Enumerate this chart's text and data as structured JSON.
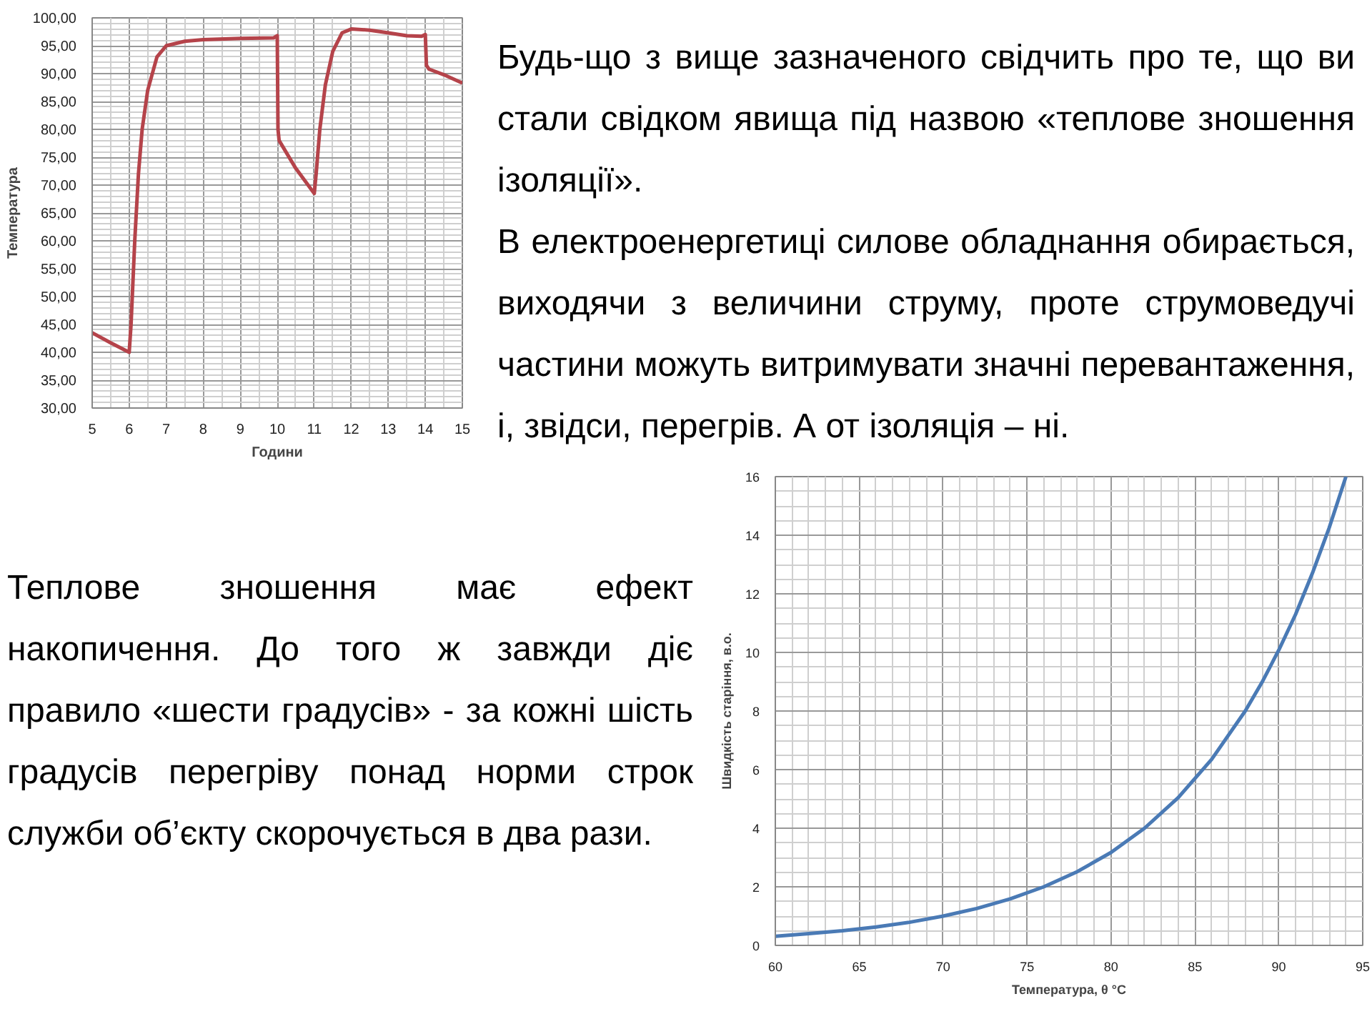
{
  "chart_data": [
    {
      "type": "line",
      "xlabel": "Години",
      "ylabel": "Температура",
      "grid": true,
      "marker": "none",
      "line_style": "solid",
      "xlim": [
        5,
        15
      ],
      "ylim": [
        30,
        100
      ],
      "xticks": [
        5,
        6,
        7,
        8,
        9,
        10,
        11,
        12,
        13,
        14,
        15
      ],
      "yticks": [
        {
          "value": 30,
          "label": "30,00"
        },
        {
          "value": 35,
          "label": "35,00"
        },
        {
          "value": 40,
          "label": "40,00"
        },
        {
          "value": 45,
          "label": "45,00"
        },
        {
          "value": 50,
          "label": "50,00"
        },
        {
          "value": 55,
          "label": "55,00"
        },
        {
          "value": 60,
          "label": "60,00"
        },
        {
          "value": 65,
          "label": "65,00"
        },
        {
          "value": 70,
          "label": "70,00"
        },
        {
          "value": 75,
          "label": "75,00"
        },
        {
          "value": 80,
          "label": "80,00"
        },
        {
          "value": 85,
          "label": "85,00"
        },
        {
          "value": 90,
          "label": "90,00"
        },
        {
          "value": 95,
          "label": "95,00"
        },
        {
          "value": 100,
          "label": "100,00"
        }
      ],
      "x": [
        5,
        5.5,
        6,
        6.05,
        6.15,
        6.25,
        6.35,
        6.5,
        6.75,
        7,
        7.5,
        8,
        9,
        9.9,
        10,
        10.02,
        10.05,
        10.5,
        11,
        11.05,
        11.15,
        11.3,
        11.5,
        11.75,
        12,
        12.5,
        13,
        13.5,
        13.9,
        14,
        14.03,
        14.1,
        14.5,
        15
      ],
      "series": [
        {
          "color": "#b5434a",
          "values": [
            43.5,
            41.7,
            40,
            45,
            60,
            72,
            80,
            87,
            93,
            95,
            95.8,
            96.1,
            96.3,
            96.4,
            96.8,
            80,
            78,
            73,
            68.5,
            72,
            80,
            88,
            94,
            97.3,
            98,
            97.8,
            97.3,
            96.8,
            96.7,
            97,
            91.5,
            90.8,
            89.8,
            88.3
          ]
        }
      ]
    },
    {
      "type": "other",
      "annotations": [
        "Будь-що з вище зазначеного свідчить про те, що ви стали свідком явища під назвою «теплове зношення ізоляції».",
        "В електроенергетиці  силове обладнання обирається, виходячи з величини струму, проте струмоведучі частини можуть витримувати значні перевантаження, і, звідси, перегрів.  А от ізоляція – ні."
      ]
    },
    {
      "type": "other",
      "annotations": [
        "Теплове зношення має ефект накопичення. До того ж завжди діє правило «шести градусів» - за кожні шість градусів перегріву понад норми строк служби об’єкту скорочується в два рази."
      ]
    },
    {
      "type": "line",
      "xlabel": "Температура, θ °C",
      "ylabel": "Швидкість старіння, в.о.",
      "grid": true,
      "marker": "none",
      "line_style": "solid",
      "xlim": [
        60,
        95
      ],
      "ylim": [
        0,
        16
      ],
      "xticks": [
        60,
        65,
        70,
        75,
        80,
        85,
        90,
        95
      ],
      "yticks": [
        0,
        2,
        4,
        6,
        8,
        10,
        12,
        14,
        16
      ],
      "x": [
        60,
        62,
        64,
        66,
        68,
        70,
        72,
        74,
        76,
        78,
        80,
        82,
        84,
        86,
        88,
        89,
        90,
        91,
        92,
        93,
        94
      ],
      "series": [
        {
          "color": "#4a7ab5",
          "values": [
            0.31,
            0.4,
            0.5,
            0.63,
            0.79,
            1.0,
            1.26,
            1.59,
            2.0,
            2.52,
            3.17,
            4.0,
            5.04,
            6.35,
            8.0,
            8.98,
            10.08,
            11.3,
            12.7,
            14.25,
            16
          ]
        }
      ]
    }
  ]
}
